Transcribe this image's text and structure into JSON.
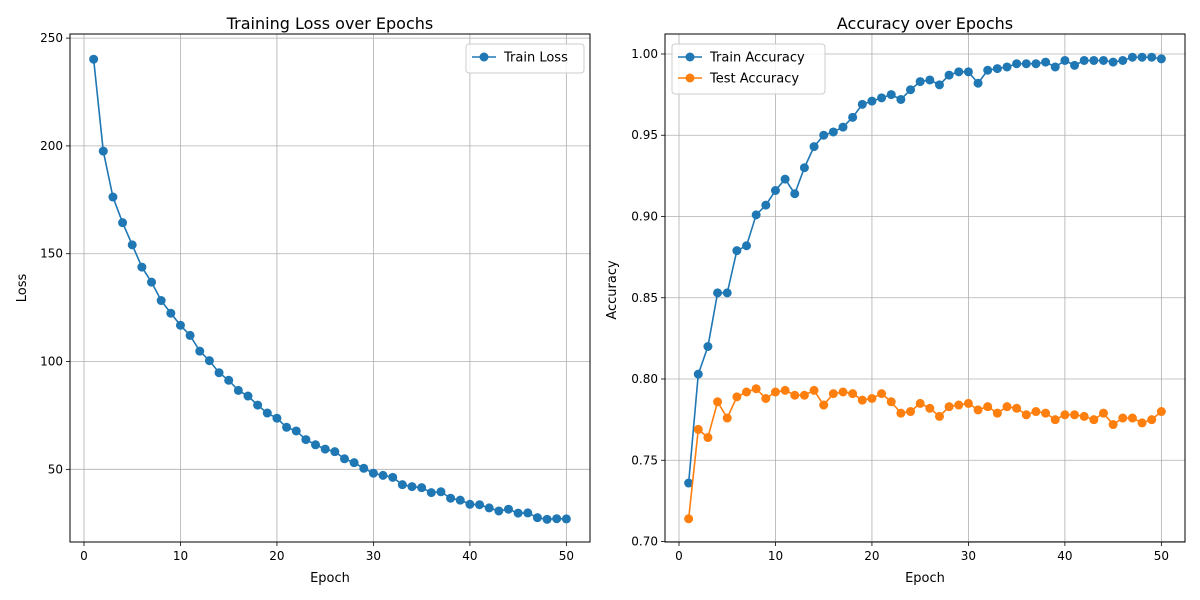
{
  "chart_data": [
    {
      "type": "line",
      "title": "Training Loss over Epochs",
      "xlabel": "Epoch",
      "ylabel": "Loss",
      "xlim": [
        -1.45,
        52.45
      ],
      "ylim": [
        16.3,
        251.9
      ],
      "xticks": [
        0,
        10,
        20,
        30,
        40,
        50
      ],
      "xtick_labels": [
        "0",
        "10",
        "20",
        "30",
        "40",
        "50"
      ],
      "yticks": [
        50,
        100,
        150,
        200,
        250
      ],
      "ytick_labels": [
        "50",
        "100",
        "150",
        "200",
        "250"
      ],
      "grid": true,
      "legend": "upper right",
      "x": [
        1,
        2,
        3,
        4,
        5,
        6,
        7,
        8,
        9,
        10,
        11,
        12,
        13,
        14,
        15,
        16,
        17,
        18,
        19,
        20,
        21,
        22,
        23,
        24,
        25,
        26,
        27,
        28,
        29,
        30,
        31,
        32,
        33,
        34,
        35,
        36,
        37,
        38,
        39,
        40,
        41,
        42,
        43,
        44,
        45,
        46,
        47,
        48,
        49,
        50
      ],
      "series": [
        {
          "name": "Train Loss",
          "color": "#1f77b4",
          "values": [
            240.2,
            197.6,
            176.3,
            164.4,
            154.1,
            143.8,
            136.8,
            128.3,
            122.4,
            116.8,
            112.1,
            104.8,
            100.4,
            94.8,
            91.3,
            86.6,
            84.0,
            79.8,
            76.1,
            73.7,
            69.5,
            67.8,
            63.8,
            61.4,
            59.4,
            58.2,
            54.9,
            53.1,
            50.5,
            48.2,
            47.2,
            46.3,
            42.9,
            42.0,
            41.5,
            39.2,
            39.6,
            36.6,
            35.7,
            33.8,
            33.6,
            32.1,
            30.7,
            31.5,
            29.7,
            29.8,
            27.6,
            26.8,
            27.1,
            27.0
          ]
        }
      ]
    },
    {
      "type": "line",
      "title": "Accuracy over Epochs",
      "xlabel": "Epoch",
      "ylabel": "Accuracy",
      "xlim": [
        -1.45,
        52.45
      ],
      "ylim": [
        0.6997,
        1.0123
      ],
      "xticks": [
        0,
        10,
        20,
        30,
        40,
        50
      ],
      "xtick_labels": [
        "0",
        "10",
        "20",
        "30",
        "40",
        "50"
      ],
      "yticks": [
        0.7,
        0.75,
        0.8,
        0.85,
        0.9,
        0.95,
        1.0
      ],
      "ytick_labels": [
        "0.70",
        "0.75",
        "0.80",
        "0.85",
        "0.90",
        "0.95",
        "1.00"
      ],
      "grid": true,
      "legend": "upper left",
      "x": [
        1,
        2,
        3,
        4,
        5,
        6,
        7,
        8,
        9,
        10,
        11,
        12,
        13,
        14,
        15,
        16,
        17,
        18,
        19,
        20,
        21,
        22,
        23,
        24,
        25,
        26,
        27,
        28,
        29,
        30,
        31,
        32,
        33,
        34,
        35,
        36,
        37,
        38,
        39,
        40,
        41,
        42,
        43,
        44,
        45,
        46,
        47,
        48,
        49,
        50
      ],
      "series": [
        {
          "name": "Train Accuracy",
          "color": "#1f77b4",
          "values": [
            0.736,
            0.803,
            0.82,
            0.853,
            0.853,
            0.879,
            0.882,
            0.901,
            0.907,
            0.916,
            0.923,
            0.914,
            0.93,
            0.943,
            0.95,
            0.952,
            0.955,
            0.961,
            0.969,
            0.971,
            0.973,
            0.975,
            0.972,
            0.978,
            0.983,
            0.984,
            0.981,
            0.987,
            0.989,
            0.989,
            0.982,
            0.99,
            0.991,
            0.992,
            0.994,
            0.994,
            0.994,
            0.995,
            0.992,
            0.996,
            0.993,
            0.996,
            0.996,
            0.996,
            0.995,
            0.996,
            0.998,
            0.998,
            0.998,
            0.997
          ]
        },
        {
          "name": "Test Accuracy",
          "color": "#ff7f0e",
          "values": [
            0.714,
            0.769,
            0.764,
            0.786,
            0.776,
            0.789,
            0.792,
            0.794,
            0.788,
            0.792,
            0.793,
            0.79,
            0.79,
            0.793,
            0.784,
            0.791,
            0.792,
            0.791,
            0.787,
            0.788,
            0.791,
            0.786,
            0.779,
            0.78,
            0.785,
            0.782,
            0.777,
            0.783,
            0.784,
            0.785,
            0.781,
            0.783,
            0.779,
            0.783,
            0.782,
            0.778,
            0.78,
            0.779,
            0.775,
            0.778,
            0.778,
            0.777,
            0.775,
            0.779,
            0.772,
            0.776,
            0.776,
            0.773,
            0.775,
            0.78
          ]
        }
      ]
    }
  ]
}
